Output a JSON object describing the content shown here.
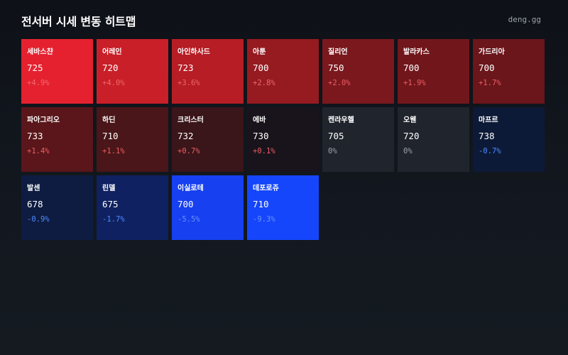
{
  "header": {
    "title": "전서버 시세 변동 히트맵",
    "brand": "deng.gg"
  },
  "tiles": [
    {
      "name": "세바스챤",
      "price": "725",
      "change": "+4.9%",
      "bg": "#e5212f",
      "change_color": "#f06a70"
    },
    {
      "name": "어레인",
      "price": "720",
      "change": "+4.0%",
      "bg": "#c91f28",
      "change_color": "#f0676c"
    },
    {
      "name": "아인하사드",
      "price": "723",
      "change": "+3.6%",
      "bg": "#b61d25",
      "change_color": "#f0676c"
    },
    {
      "name": "아툰",
      "price": "700",
      "change": "+2.8%",
      "bg": "#951b21",
      "change_color": "#f0676c"
    },
    {
      "name": "질리언",
      "price": "750",
      "change": "+2.0%",
      "bg": "#7a181d",
      "change_color": "#ee5d64"
    },
    {
      "name": "발라카스",
      "price": "700",
      "change": "+1.9%",
      "bg": "#71171c",
      "change_color": "#ee5d64"
    },
    {
      "name": "가드리아",
      "price": "700",
      "change": "+1.7%",
      "bg": "#6a161b",
      "change_color": "#ee5d64"
    },
    {
      "name": "파아그리오",
      "price": "733",
      "change": "+1.4%",
      "bg": "#5a161a",
      "change_color": "#ee5d64"
    },
    {
      "name": "하딘",
      "price": "710",
      "change": "+1.1%",
      "bg": "#4a1619",
      "change_color": "#ee5d64"
    },
    {
      "name": "크리스터",
      "price": "732",
      "change": "+0.7%",
      "bg": "#3a1519",
      "change_color": "#ee5d64"
    },
    {
      "name": "에바",
      "price": "730",
      "change": "+0.1%",
      "bg": "#19141b",
      "change_color": "#ee5d64"
    },
    {
      "name": "켄라우헬",
      "price": "705",
      "change": "0%",
      "bg": "#20252d",
      "change_color": "#9aa1ac"
    },
    {
      "name": "오웬",
      "price": "720",
      "change": "0%",
      "bg": "#20252d",
      "change_color": "#9aa1ac"
    },
    {
      "name": "마프르",
      "price": "738",
      "change": "-0.7%",
      "bg": "#0d1a37",
      "change_color": "#4d8cff"
    },
    {
      "name": "발센",
      "price": "678",
      "change": "-0.9%",
      "bg": "#0e1c42",
      "change_color": "#4d8cff"
    },
    {
      "name": "린델",
      "price": "675",
      "change": "-1.7%",
      "bg": "#0f2160",
      "change_color": "#4d8cff"
    },
    {
      "name": "이실로테",
      "price": "700",
      "change": "-5.5%",
      "bg": "#1740f0",
      "change_color": "#6b93f7"
    },
    {
      "name": "데포로쥬",
      "price": "710",
      "change": "-9.3%",
      "bg": "#1546fb",
      "change_color": "#6b93f7"
    }
  ]
}
